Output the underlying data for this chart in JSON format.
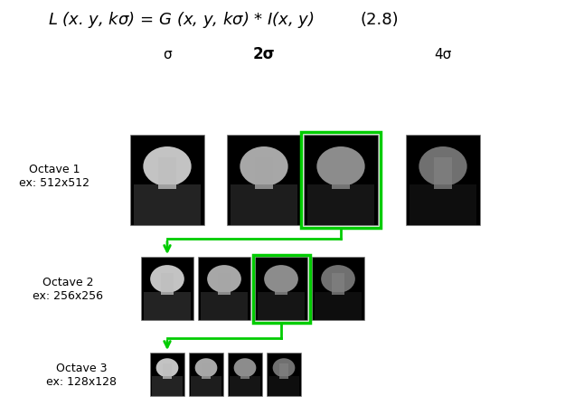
{
  "title_formula": "L (x. y, kσ) = G (x, y, kσ) * I(x, y)",
  "title_eq_num": "(2.8)",
  "background_color": "#ffffff",
  "labels_sigma": [
    "σ",
    "2σ",
    "4σ"
  ],
  "octave_labels": [
    "Octave 1\nex: 512x512",
    "Octave 2\nex: 256x256",
    "Octave 3\nex: 128x128"
  ],
  "green_color": "#00cc00",
  "arrow_color": "#00cc00",
  "oct1_images": 4,
  "oct2_images": 4,
  "oct3_images": 4,
  "oct1_highlight": 2,
  "oct2_highlight": 2,
  "formula_fontsize": 13,
  "label_fontsize": 11,
  "octave_label_fontsize": 9
}
